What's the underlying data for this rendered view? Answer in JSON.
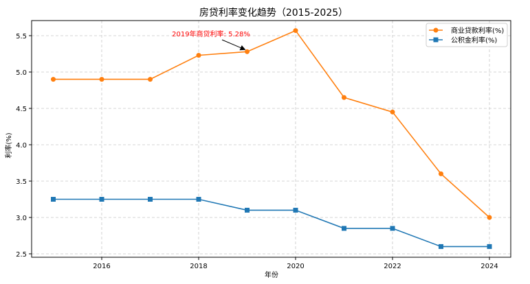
{
  "chart_data": {
    "type": "line",
    "title": "房贷利率变化趋势（2015-2025）",
    "xlabel": "年份",
    "ylabel": "利率(%)",
    "x": [
      2015,
      2016,
      2017,
      2018,
      2019,
      2020,
      2021,
      2022,
      2023,
      2024
    ],
    "xticks": [
      2016,
      2018,
      2020,
      2022,
      2024
    ],
    "yticks": [
      2.5,
      3.0,
      3.5,
      4.0,
      4.5,
      5.0,
      5.5
    ],
    "ytick_labels": [
      "2.5",
      "3.0",
      "3.5",
      "4.0",
      "4.5",
      "5.0",
      "5.5"
    ],
    "xlim": [
      2014.55,
      2024.45
    ],
    "ylim": [
      2.47,
      5.72
    ],
    "grid": true,
    "legend_position": "upper right",
    "series": [
      {
        "name": "商业贷款利率(%)",
        "color": "#ff7f0e",
        "marker": "circle",
        "values": [
          4.9,
          4.9,
          4.9,
          5.23,
          5.28,
          5.57,
          4.65,
          4.45,
          3.6,
          3.0
        ]
      },
      {
        "name": "公积金利率(%)",
        "color": "#1f77b4",
        "marker": "square",
        "values": [
          3.25,
          3.25,
          3.25,
          3.25,
          3.1,
          3.1,
          2.85,
          2.85,
          2.6,
          2.6
        ]
      }
    ],
    "annotations": [
      {
        "text": "2019年商贷利率: 5.28%",
        "x": 2019,
        "y": 5.28,
        "color": "#ff0000"
      }
    ]
  }
}
